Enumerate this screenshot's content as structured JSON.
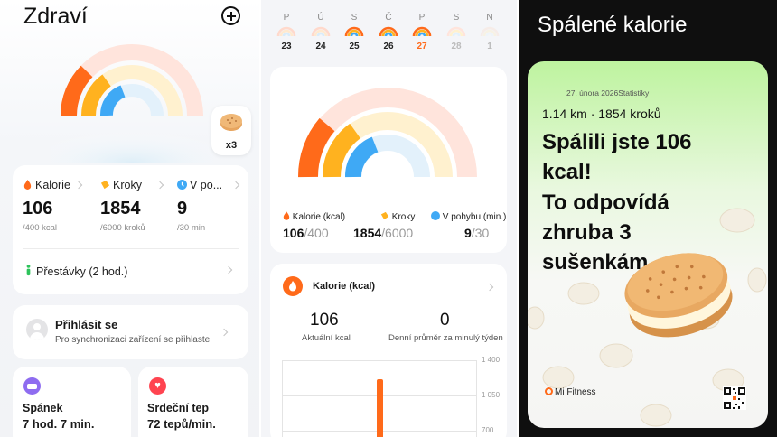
{
  "health": {
    "title": "Zdraví",
    "cookie_count": "x3",
    "stats": [
      {
        "label": "Kalorie",
        "value": "106",
        "goal": "/400 kcal"
      },
      {
        "label": "Kroky",
        "value": "1854",
        "goal": "/6000 kroků"
      },
      {
        "label": "V po...",
        "value": "9",
        "goal": "/30 min"
      }
    ],
    "breaks_label": "Přestávky (2 hod.)",
    "login": {
      "title": "Přihlásit se",
      "subtitle": "Pro synchronizaci zařízení se přihlaste"
    },
    "sleep": {
      "label": "Spánek",
      "value": "7 hod. 7 min."
    },
    "heart": {
      "label": "Srdeční tep",
      "value": "72 tepů/min."
    },
    "colors": {
      "calories": "#ff6a1a",
      "steps": "#ffb21f",
      "move": "#3fa9f5"
    }
  },
  "detail": {
    "week": {
      "letters": [
        "P",
        "Ú",
        "S",
        "Č",
        "P",
        "S",
        "N"
      ],
      "days": [
        "23",
        "24",
        "25",
        "26",
        "27",
        "28",
        "1"
      ]
    },
    "legend": [
      {
        "label": "Kalorie (kcal)",
        "value": "106",
        "goal": "/400"
      },
      {
        "label": "Kroky",
        "value": "1854",
        "goal": "/6000"
      },
      {
        "label": "V pohybu (min.)",
        "value": "9",
        "goal": "/30"
      }
    ],
    "calorie_card": {
      "title": "Kalorie (kcal)",
      "current_value": "106",
      "current_label": "Aktuální kcal",
      "average_value": "0",
      "average_label": "Denní průměr za minulý týden"
    },
    "chart_axis": [
      "1 400",
      "1 050",
      "700"
    ]
  },
  "chart_data": {
    "type": "bar",
    "title": "",
    "xlabel": "",
    "ylabel": "",
    "y_tick_labels": [
      "1 400",
      "1 050",
      "700"
    ],
    "ylim": [
      700,
      1400
    ],
    "note_values": "single bar visible, extends below visible axis range"
  },
  "share": {
    "title": "Spálené kalorie",
    "date": "27. února 2026",
    "stats_tag": "Statistiky",
    "distance_line": "1.14 km · 1854 kroků",
    "big_lines": [
      "Spálili jste 106",
      "kcal!",
      "To odpovídá",
      "zhruba 3",
      "sušenkám."
    ],
    "brand": "Mi Fitness"
  }
}
